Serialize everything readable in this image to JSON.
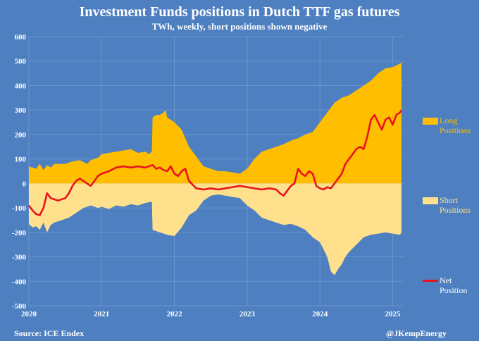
{
  "header": {
    "title": "Investment Funds positions in Dutch TTF gas futures",
    "subtitle": "TWh, weekly, short positions shown negative"
  },
  "footer": {
    "source": "Source: ICE Endex",
    "credit": "@JKempEnergy"
  },
  "legend": {
    "long_label": "Long\nPositions",
    "short_label": "Short\nPositions",
    "net_label": "Net\nPosition"
  },
  "colors": {
    "background": "#4e7fc0",
    "long": "#ffbf00",
    "short": "#ffe08c",
    "net": "#e8141c",
    "grid": "#6b95cc"
  },
  "chart_data": {
    "type": "area",
    "title": "Investment Funds positions in Dutch TTF gas futures",
    "subtitle": "TWh, weekly, short positions shown negative",
    "xlim": [
      2020.0,
      2025.15
    ],
    "ylim": [
      -500,
      600
    ],
    "y_ticks": [
      600,
      500,
      400,
      300,
      200,
      100,
      0,
      -100,
      -200,
      -300,
      -400,
      -500
    ],
    "x_ticks": [
      "2020",
      "2021",
      "2022",
      "2023",
      "2024",
      "2025"
    ],
    "grid": true,
    "series": [
      {
        "name": "Long Positions",
        "kind": "area",
        "points": [
          [
            2020.0,
            70
          ],
          [
            2020.1,
            60
          ],
          [
            2020.15,
            80
          ],
          [
            2020.2,
            55
          ],
          [
            2020.25,
            75
          ],
          [
            2020.3,
            65
          ],
          [
            2020.35,
            80
          ],
          [
            2020.5,
            80
          ],
          [
            2020.6,
            90
          ],
          [
            2020.7,
            95
          ],
          [
            2020.8,
            80
          ],
          [
            2020.85,
            95
          ],
          [
            2020.9,
            100
          ],
          [
            2020.95,
            105
          ],
          [
            2021.0,
            120
          ],
          [
            2021.1,
            125
          ],
          [
            2021.2,
            130
          ],
          [
            2021.3,
            135
          ],
          [
            2021.4,
            140
          ],
          [
            2021.5,
            125
          ],
          [
            2021.6,
            130
          ],
          [
            2021.65,
            120
          ],
          [
            2021.69,
            130
          ],
          [
            2021.7,
            270
          ],
          [
            2021.75,
            280
          ],
          [
            2021.8,
            280
          ],
          [
            2021.85,
            290
          ],
          [
            2021.88,
            300
          ],
          [
            2021.9,
            270
          ],
          [
            2022.0,
            250
          ],
          [
            2022.1,
            220
          ],
          [
            2022.2,
            150
          ],
          [
            2022.3,
            110
          ],
          [
            2022.4,
            70
          ],
          [
            2022.5,
            60
          ],
          [
            2022.6,
            50
          ],
          [
            2022.7,
            50
          ],
          [
            2022.8,
            45
          ],
          [
            2022.9,
            40
          ],
          [
            2023.0,
            60
          ],
          [
            2023.1,
            100
          ],
          [
            2023.2,
            130
          ],
          [
            2023.3,
            140
          ],
          [
            2023.4,
            150
          ],
          [
            2023.5,
            160
          ],
          [
            2023.6,
            175
          ],
          [
            2023.7,
            185
          ],
          [
            2023.8,
            200
          ],
          [
            2023.9,
            210
          ],
          [
            2024.0,
            250
          ],
          [
            2024.1,
            290
          ],
          [
            2024.2,
            330
          ],
          [
            2024.3,
            350
          ],
          [
            2024.4,
            360
          ],
          [
            2024.5,
            380
          ],
          [
            2024.6,
            400
          ],
          [
            2024.7,
            420
          ],
          [
            2024.8,
            450
          ],
          [
            2024.9,
            470
          ],
          [
            2025.0,
            475
          ],
          [
            2025.1,
            490
          ],
          [
            2025.12,
            495
          ]
        ]
      },
      {
        "name": "Short Positions",
        "kind": "area",
        "points": [
          [
            2020.0,
            -165
          ],
          [
            2020.05,
            -180
          ],
          [
            2020.1,
            -175
          ],
          [
            2020.15,
            -190
          ],
          [
            2020.2,
            -160
          ],
          [
            2020.25,
            -200
          ],
          [
            2020.3,
            -170
          ],
          [
            2020.35,
            -160
          ],
          [
            2020.45,
            -150
          ],
          [
            2020.55,
            -140
          ],
          [
            2020.65,
            -120
          ],
          [
            2020.75,
            -100
          ],
          [
            2020.85,
            -90
          ],
          [
            2020.95,
            -100
          ],
          [
            2021.0,
            -95
          ],
          [
            2021.1,
            -105
          ],
          [
            2021.2,
            -90
          ],
          [
            2021.3,
            -95
          ],
          [
            2021.4,
            -85
          ],
          [
            2021.5,
            -90
          ],
          [
            2021.6,
            -80
          ],
          [
            2021.69,
            -75
          ],
          [
            2021.7,
            -190
          ],
          [
            2021.8,
            -200
          ],
          [
            2021.9,
            -210
          ],
          [
            2022.0,
            -215
          ],
          [
            2022.1,
            -180
          ],
          [
            2022.2,
            -130
          ],
          [
            2022.3,
            -110
          ],
          [
            2022.4,
            -70
          ],
          [
            2022.5,
            -50
          ],
          [
            2022.6,
            -45
          ],
          [
            2022.7,
            -50
          ],
          [
            2022.8,
            -55
          ],
          [
            2022.9,
            -60
          ],
          [
            2023.0,
            -90
          ],
          [
            2023.1,
            -110
          ],
          [
            2023.2,
            -140
          ],
          [
            2023.3,
            -150
          ],
          [
            2023.4,
            -160
          ],
          [
            2023.5,
            -170
          ],
          [
            2023.6,
            -165
          ],
          [
            2023.7,
            -175
          ],
          [
            2023.8,
            -190
          ],
          [
            2023.9,
            -220
          ],
          [
            2024.0,
            -240
          ],
          [
            2024.1,
            -300
          ],
          [
            2024.15,
            -360
          ],
          [
            2024.2,
            -375
          ],
          [
            2024.25,
            -350
          ],
          [
            2024.3,
            -330
          ],
          [
            2024.35,
            -300
          ],
          [
            2024.4,
            -280
          ],
          [
            2024.5,
            -250
          ],
          [
            2024.6,
            -220
          ],
          [
            2024.7,
            -210
          ],
          [
            2024.8,
            -205
          ],
          [
            2024.9,
            -200
          ],
          [
            2025.0,
            -205
          ],
          [
            2025.1,
            -210
          ],
          [
            2025.12,
            -200
          ]
        ]
      },
      {
        "name": "Net Position",
        "kind": "line",
        "points": [
          [
            2020.0,
            -90
          ],
          [
            2020.05,
            -110
          ],
          [
            2020.1,
            -125
          ],
          [
            2020.15,
            -130
          ],
          [
            2020.2,
            -100
          ],
          [
            2020.25,
            -40
          ],
          [
            2020.3,
            -60
          ],
          [
            2020.4,
            -70
          ],
          [
            2020.5,
            -60
          ],
          [
            2020.55,
            -40
          ],
          [
            2020.6,
            -10
          ],
          [
            2020.65,
            10
          ],
          [
            2020.7,
            20
          ],
          [
            2020.8,
            0
          ],
          [
            2020.85,
            -10
          ],
          [
            2020.9,
            10
          ],
          [
            2020.95,
            30
          ],
          [
            2021.0,
            40
          ],
          [
            2021.1,
            50
          ],
          [
            2021.2,
            65
          ],
          [
            2021.3,
            70
          ],
          [
            2021.4,
            65
          ],
          [
            2021.5,
            70
          ],
          [
            2021.6,
            65
          ],
          [
            2021.7,
            75
          ],
          [
            2021.75,
            60
          ],
          [
            2021.8,
            65
          ],
          [
            2021.85,
            55
          ],
          [
            2021.9,
            50
          ],
          [
            2021.95,
            70
          ],
          [
            2022.0,
            40
          ],
          [
            2022.05,
            30
          ],
          [
            2022.1,
            50
          ],
          [
            2022.15,
            60
          ],
          [
            2022.2,
            10
          ],
          [
            2022.3,
            -20
          ],
          [
            2022.4,
            -25
          ],
          [
            2022.5,
            -20
          ],
          [
            2022.6,
            -25
          ],
          [
            2022.7,
            -20
          ],
          [
            2022.8,
            -15
          ],
          [
            2022.9,
            -10
          ],
          [
            2023.0,
            -15
          ],
          [
            2023.1,
            -20
          ],
          [
            2023.2,
            -25
          ],
          [
            2023.3,
            -20
          ],
          [
            2023.4,
            -25
          ],
          [
            2023.45,
            -40
          ],
          [
            2023.5,
            -50
          ],
          [
            2023.55,
            -30
          ],
          [
            2023.6,
            -10
          ],
          [
            2023.65,
            0
          ],
          [
            2023.7,
            60
          ],
          [
            2023.75,
            40
          ],
          [
            2023.8,
            30
          ],
          [
            2023.85,
            50
          ],
          [
            2023.9,
            40
          ],
          [
            2023.95,
            -10
          ],
          [
            2024.0,
            -20
          ],
          [
            2024.05,
            -25
          ],
          [
            2024.1,
            -15
          ],
          [
            2024.15,
            -20
          ],
          [
            2024.2,
            0
          ],
          [
            2024.3,
            40
          ],
          [
            2024.35,
            80
          ],
          [
            2024.4,
            100
          ],
          [
            2024.45,
            120
          ],
          [
            2024.5,
            140
          ],
          [
            2024.55,
            150
          ],
          [
            2024.6,
            140
          ],
          [
            2024.65,
            190
          ],
          [
            2024.7,
            260
          ],
          [
            2024.75,
            280
          ],
          [
            2024.8,
            250
          ],
          [
            2024.85,
            220
          ],
          [
            2024.9,
            260
          ],
          [
            2024.95,
            270
          ],
          [
            2025.0,
            240
          ],
          [
            2025.05,
            280
          ],
          [
            2025.1,
            290
          ],
          [
            2025.12,
            300
          ]
        ]
      }
    ],
    "legend_position": "right"
  }
}
